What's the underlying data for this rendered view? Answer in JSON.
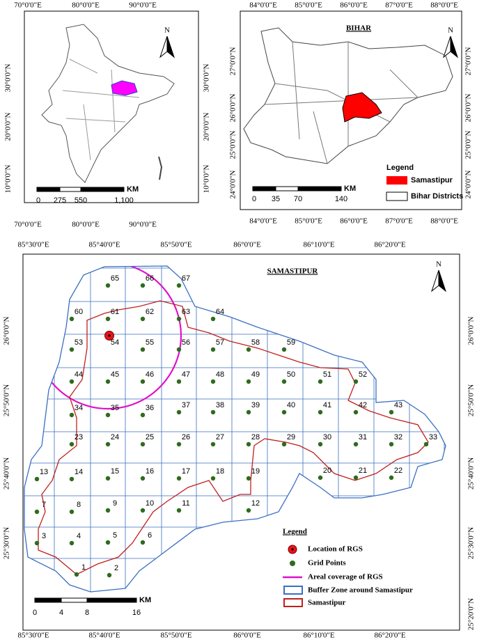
{
  "india_map": {
    "north": "N",
    "top_labels": [
      "70°0'0\"E",
      "80°0'0\"E",
      "90°0'0\"E"
    ],
    "bottom_labels": [
      "70°0'0\"E",
      "80°0'0\"E",
      "90°0'0\"E"
    ],
    "left_labels": [
      "30°0'0\"N",
      "20°0'0\"N",
      "10°0'0\"N"
    ],
    "right_labels": [
      "30°0'0\"N",
      "20°0'0\"N",
      "10°0'0\"N"
    ],
    "scale_unit": "KM",
    "scale_ticks": [
      "0",
      "275",
      "550",
      "1,100"
    ]
  },
  "bihar_map": {
    "title": "BIHAR",
    "north": "N",
    "top_labels": [
      "84°0'0\"E",
      "85°0'0\"E",
      "86°0'0\"E",
      "87°0'0\"E",
      "88°0'0\"E"
    ],
    "bottom_labels": [
      "84°0'0\"E",
      "85°0'0\"E",
      "86°0'0\"E",
      "87°0'0\"E",
      "88°0'0\"E"
    ],
    "left_labels": [
      "27°0'0\"N",
      "26°0'0\"N",
      "25°0'0\"N",
      "24°0'0\"N"
    ],
    "right_labels": [
      "27°0'0\"N",
      "26°0'0\"N",
      "25°0'0\"N",
      "24°0'0\"N"
    ],
    "scale_unit": "KM",
    "scale_ticks": [
      "0",
      "35",
      "70",
      "140"
    ],
    "legend": {
      "title": "Legend",
      "items": [
        "Samastipur",
        "Bihar Districts"
      ]
    }
  },
  "samastipur_map": {
    "title": "SAMASTIPUR",
    "north": "N",
    "top_labels": [
      "85°30'0\"E",
      "85°40'0\"E",
      "85°50'0\"E",
      "86°0'0\"E",
      "86°10'0\"E",
      "86°20'0\"E"
    ],
    "bottom_labels": [
      "85°30'0\"E",
      "85°40'0\"E",
      "85°50'0\"E",
      "86°0'0\"E",
      "86°10'0\"E",
      "86°20'0\"E"
    ],
    "left_labels": [
      "26°0'0\"N",
      "25°50'0\"N",
      "25°40'0\"N",
      "25°30'0\"N"
    ],
    "right_labels": [
      "26°0'0\"N",
      "25°50'0\"N",
      "25°40'0\"N",
      "25°30'0\"N",
      "25°20'0\"N"
    ],
    "grid_points": [
      "1",
      "2",
      "3",
      "4",
      "5",
      "6",
      "7",
      "8",
      "9",
      "10",
      "11",
      "12",
      "13",
      "14",
      "15",
      "16",
      "17",
      "18",
      "19",
      "20",
      "21",
      "22",
      "23",
      "24",
      "25",
      "26",
      "27",
      "28",
      "29",
      "30",
      "31",
      "32",
      "33",
      "34",
      "35",
      "36",
      "37",
      "38",
      "39",
      "40",
      "41",
      "42",
      "43",
      "44",
      "45",
      "46",
      "47",
      "48",
      "49",
      "50",
      "51",
      "52",
      "53",
      "54",
      "55",
      "56",
      "57",
      "58",
      "59",
      "60",
      "61",
      "62",
      "63",
      "64",
      "65",
      "66",
      "67"
    ],
    "scale_unit": "KM",
    "scale_ticks": [
      "0",
      "4",
      "8",
      "16"
    ],
    "legend": {
      "title": "Legend",
      "items": [
        "Location of RGS",
        "Grid Points",
        "Areal coverage of RGS",
        "Buffer Zone around Samastipur",
        "Samastipur"
      ]
    }
  }
}
